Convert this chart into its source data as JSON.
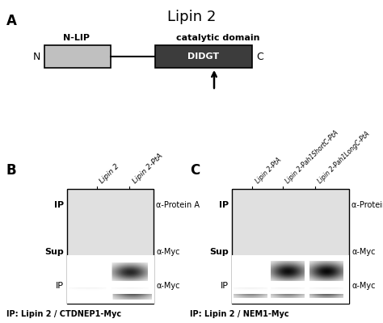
{
  "title": "Lipin 2",
  "panel_A": {
    "nlip_label": "N-LIP",
    "cat_label": "catalytic domain",
    "didgt_label": "DIDGT",
    "n_label": "N",
    "c_label": "C"
  },
  "panel_B": {
    "label": "B",
    "lanes": [
      "Lipin 2",
      "Lipin 2-PtA"
    ],
    "rows": [
      "IP",
      "Sup",
      "IP"
    ],
    "antibodies": [
      "α-Protein A",
      "α-Myc",
      "α-Myc"
    ],
    "caption": "IP: Lipin 2 / CTDNEP1-Myc"
  },
  "panel_C": {
    "label": "C",
    "lanes": [
      "Lipin 2-PtA",
      "Lipin 2-Pah1ShortC-PtA",
      "Lipin 2-Pah1LongC-PtA"
    ],
    "rows": [
      "IP",
      "Sup",
      "IP"
    ],
    "antibodies": [
      "α-Protein A",
      "α-Myc",
      "α-Myc"
    ],
    "caption": "IP: Lipin 2 / NEM1-Myc"
  }
}
